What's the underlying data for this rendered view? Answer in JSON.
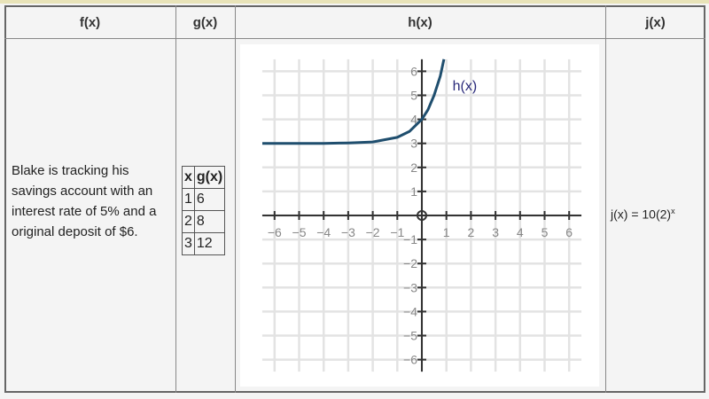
{
  "headers": [
    "f(x)",
    "g(x)",
    "h(x)",
    "j(x)"
  ],
  "f": {
    "description": "Blake is tracking his savings account with an interest rate of 5% and a original deposit of $6."
  },
  "g": {
    "columns": [
      "x",
      "g(x)"
    ],
    "rows": [
      [
        "1",
        "6"
      ],
      [
        "2",
        "8"
      ],
      [
        "3",
        "12"
      ]
    ]
  },
  "j": {
    "base_text": "j(x) = 10(2)",
    "exponent": "x"
  },
  "chart_data": {
    "type": "line",
    "xlim": [
      -6.5,
      6.5
    ],
    "ylim": [
      -6.5,
      6.5
    ],
    "grid": true,
    "x_ticks": [
      "−6",
      "−5",
      "−4",
      "−3",
      "−2",
      "−1",
      "1",
      "2",
      "3",
      "4",
      "5",
      "6"
    ],
    "y_ticks": [
      "6",
      "5",
      "4",
      "3",
      "2",
      "1",
      "−1",
      "−2",
      "−3",
      "−4",
      "−5",
      "−6"
    ],
    "series": [
      {
        "name": "h(x)",
        "color": "#1f4e6e",
        "x": [
          -6.5,
          -5,
          -4,
          -3,
          -2,
          -1,
          -0.5,
          0,
          0.25,
          0.5,
          0.75,
          0.9
        ],
        "y": [
          3.0,
          3.0,
          3.0,
          3.02,
          3.06,
          3.25,
          3.5,
          4.0,
          4.4,
          5.0,
          5.8,
          6.5
        ]
      }
    ],
    "label_color": "#2a2a7a"
  }
}
